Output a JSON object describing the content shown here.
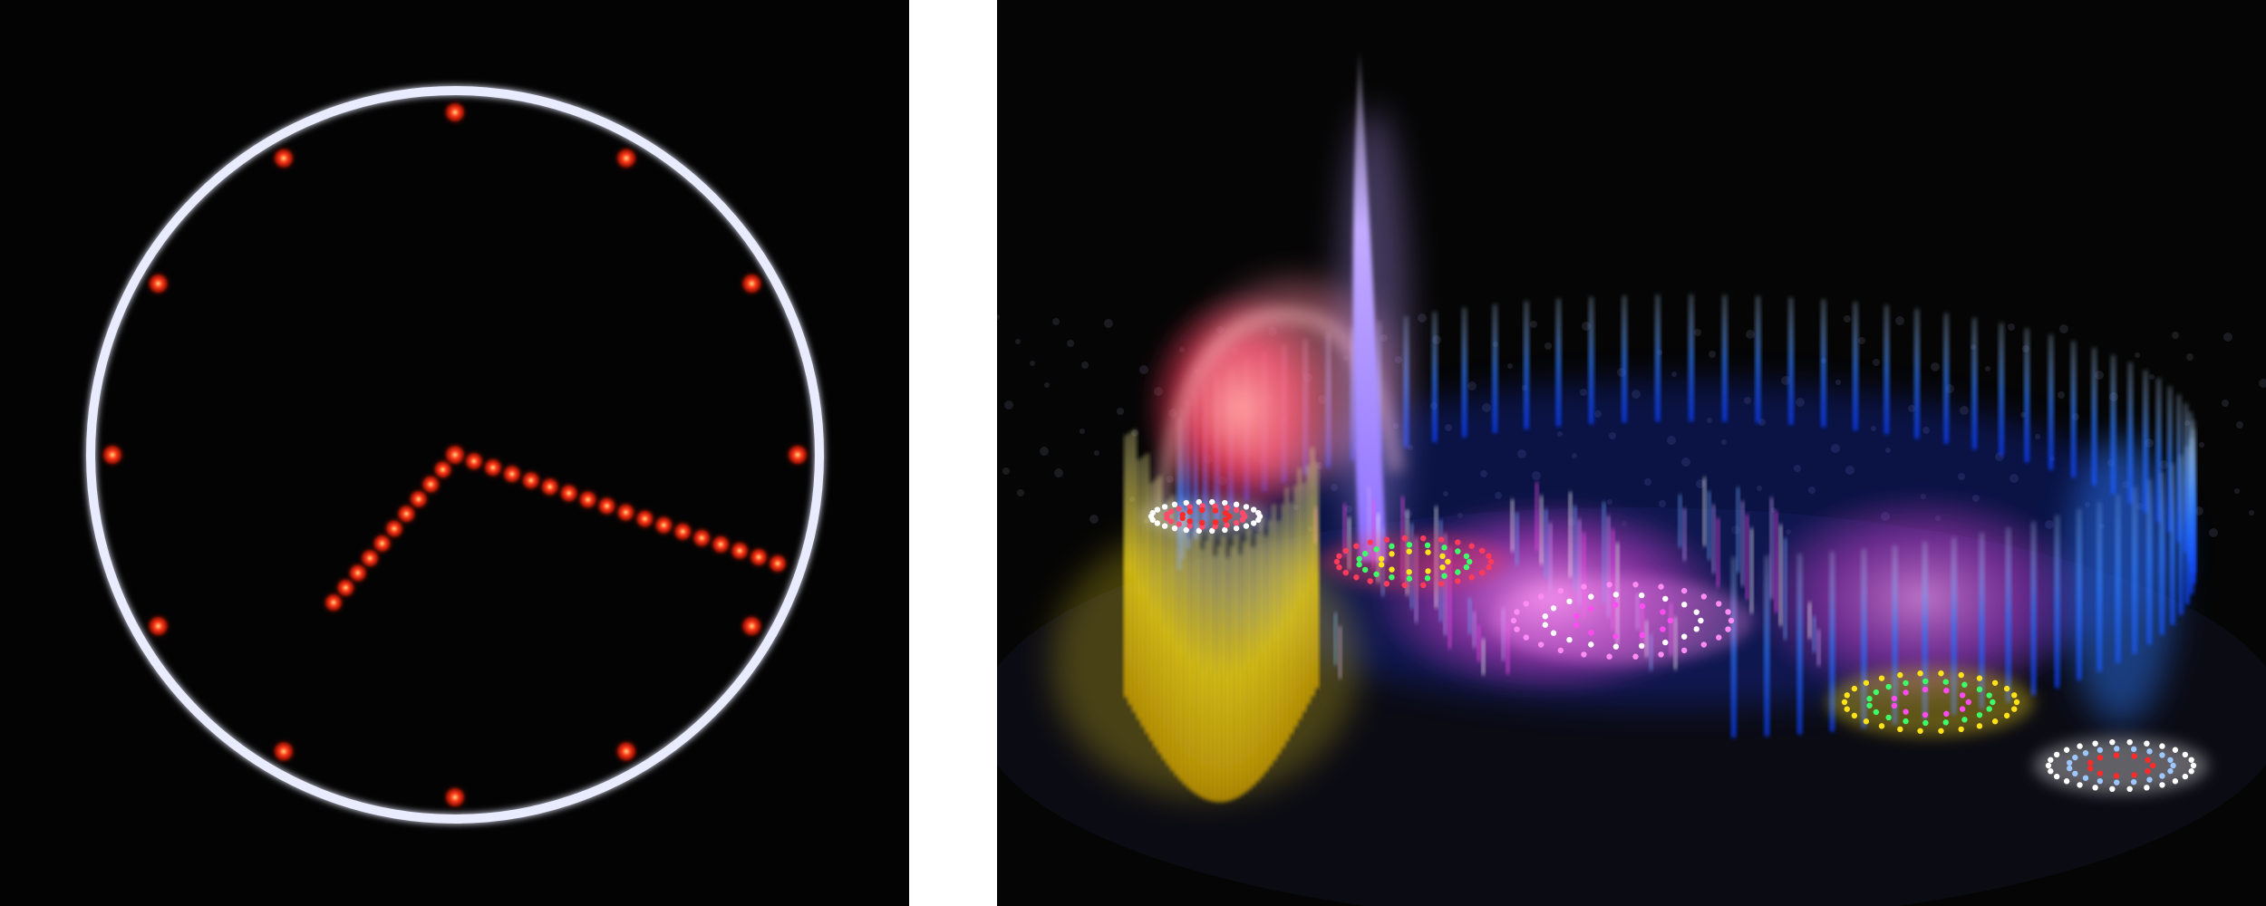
{
  "panels": [
    {
      "name": "led-clock-photo",
      "background": "#030303",
      "ring_color": "#ffffff",
      "led_color": "#ff3a1a",
      "hour_markers": 12,
      "hands": {
        "hour_hand_leds": 10,
        "minute_hand_leds": 17
      }
    },
    {
      "name": "illuminated-fountain-photo",
      "background": "#050505",
      "jet_colors": {
        "central_jet": "#b79cff",
        "outer_ring": "#2f7bff",
        "curtain": "#ffe21a",
        "left_plume": "#ff3b5c",
        "center_glow": "#ff4cf0"
      }
    }
  ]
}
